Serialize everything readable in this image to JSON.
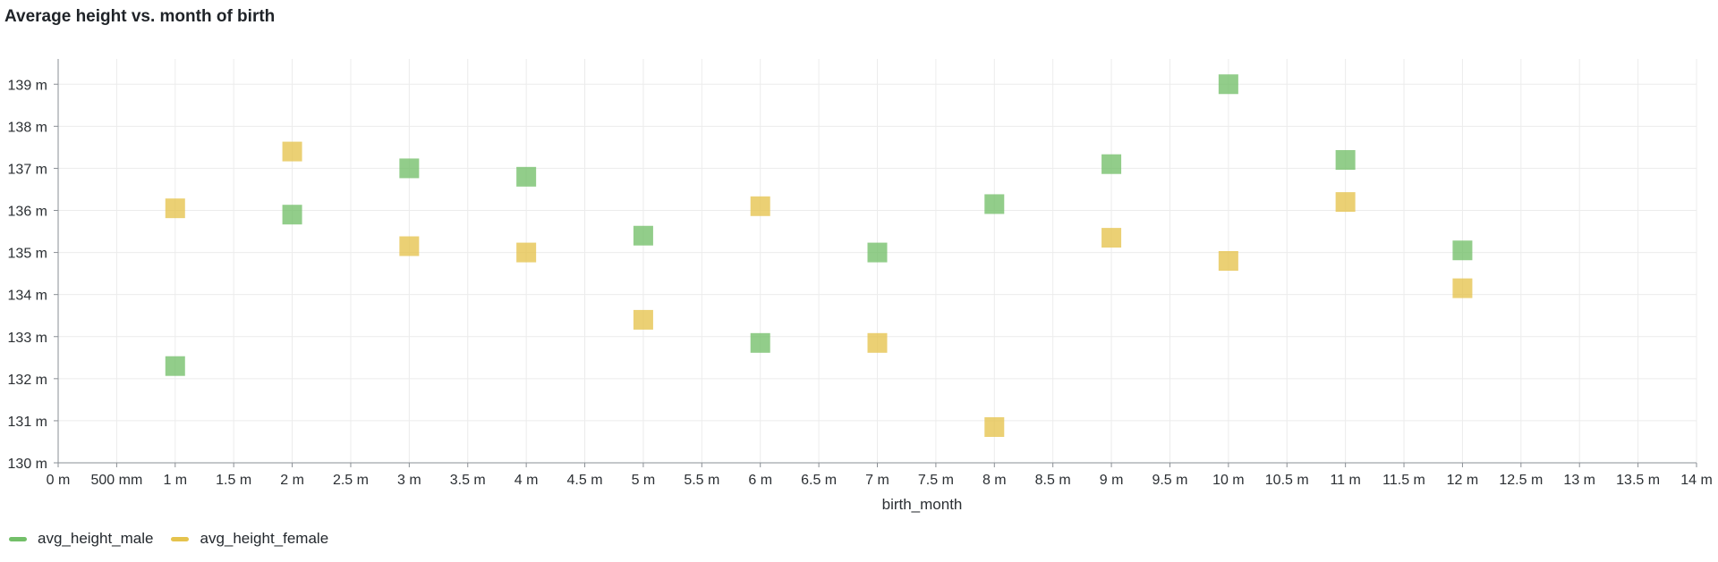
{
  "panel": {
    "title": "Average height vs. month of birth"
  },
  "chart_data": {
    "type": "scatter",
    "title": "Average height vs. month of birth",
    "xlabel": "birth_month",
    "ylabel": "",
    "xlim": [
      0,
      14
    ],
    "ylim": [
      130,
      139.6
    ],
    "grid": true,
    "legend_position": "bottom-left",
    "x_ticks": [
      0,
      0.5,
      1,
      1.5,
      2,
      2.5,
      3,
      3.5,
      4,
      4.5,
      5,
      5.5,
      6,
      6.5,
      7,
      7.5,
      8,
      8.5,
      9,
      9.5,
      10,
      10.5,
      11,
      11.5,
      12,
      12.5,
      13,
      13.5,
      14
    ],
    "x_tick_labels": [
      "0 m",
      "500 mm",
      "1 m",
      "1.5 m",
      "2 m",
      "2.5 m",
      "3 m",
      "3.5 m",
      "4 m",
      "4.5 m",
      "5 m",
      "5.5 m",
      "6 m",
      "6.5 m",
      "7 m",
      "7.5 m",
      "8 m",
      "8.5 m",
      "9 m",
      "9.5 m",
      "10 m",
      "10.5 m",
      "11 m",
      "11.5 m",
      "12 m",
      "12.5 m",
      "13 m",
      "13.5 m",
      "14 m"
    ],
    "y_ticks": [
      130,
      131,
      132,
      133,
      134,
      135,
      136,
      137,
      138,
      139
    ],
    "y_tick_labels": [
      "130 m",
      "131 m",
      "132 m",
      "133 m",
      "134 m",
      "135 m",
      "136 m",
      "137 m",
      "138 m",
      "139 m"
    ],
    "series": [
      {
        "name": "avg_height_male",
        "color": "#73bf69",
        "marker": "square",
        "x": [
          1,
          2,
          3,
          4,
          5,
          6,
          7,
          8,
          9,
          10,
          11,
          12
        ],
        "y": [
          132.3,
          135.9,
          137.0,
          136.8,
          135.4,
          132.85,
          135.0,
          136.15,
          137.1,
          139.0,
          137.2,
          135.05
        ]
      },
      {
        "name": "avg_height_female",
        "color": "#e5c34d",
        "marker": "square",
        "x": [
          1,
          2,
          3,
          4,
          5,
          6,
          7,
          8,
          9,
          10,
          11,
          12
        ],
        "y": [
          136.05,
          137.4,
          135.15,
          135.0,
          133.4,
          136.1,
          132.85,
          130.85,
          135.35,
          134.8,
          136.2,
          134.15
        ]
      }
    ]
  }
}
